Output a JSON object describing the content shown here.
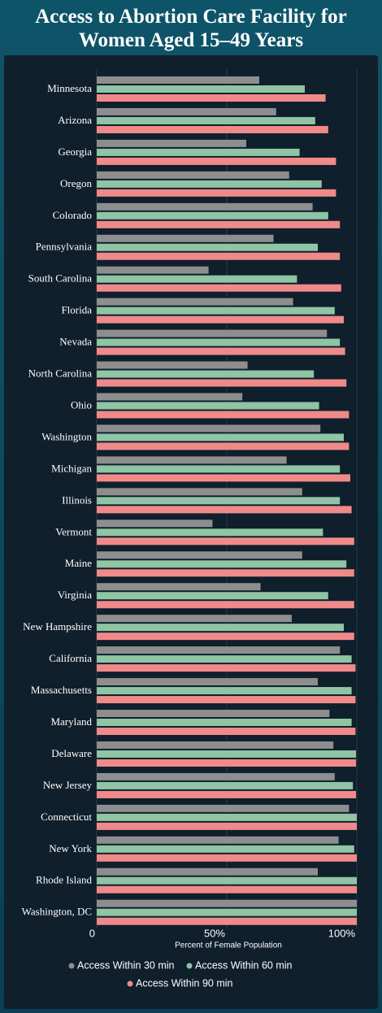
{
  "chart_data": {
    "type": "barh",
    "title": "Access to Abortion Care Facility for Women Aged 15–49 Years",
    "x_label": "Percent of Female Population",
    "categories": [
      "Minnesota",
      "Arizona",
      "Georgia",
      "Oregon",
      "Colorado",
      "Pennsylvania",
      "South Carolina",
      "Florida",
      "Nevada",
      "North Carolina",
      "Ohio",
      "Washington",
      "Michigan",
      "Illinois",
      "Vermont",
      "Maine",
      "Virginia",
      "New Hampshire",
      "California",
      "Massachusetts",
      "Maryland",
      "Delaware",
      "New Jersey",
      "Connecticut",
      "New York",
      "Rhode Island",
      "Washington, DC"
    ],
    "series": [
      {
        "name": "Access Within 30 min",
        "color": "#8e8e8e",
        "values": [
          62.5,
          69,
          57.5,
          74,
          83,
          68,
          43,
          75.5,
          88.5,
          58,
          56,
          86,
          73,
          79,
          44.5,
          79,
          63,
          75,
          93.5,
          85,
          89.5,
          91,
          91.5,
          97,
          93,
          85,
          100
        ]
      },
      {
        "name": "Access Within 60 min",
        "color": "#8fc4a5",
        "values": [
          80,
          84,
          78,
          86.5,
          89,
          85,
          77,
          91.5,
          93.5,
          83.5,
          85.5,
          95,
          93.5,
          93.5,
          87,
          96,
          89,
          95,
          98,
          98,
          98,
          99.7,
          98.5,
          100,
          99,
          100,
          100
        ]
      },
      {
        "name": "Access Within 90 min",
        "color": "#f08a8a",
        "values": [
          88,
          89,
          92,
          92,
          93.5,
          93.5,
          94,
          95,
          95.5,
          96,
          97,
          97,
          97.5,
          98,
          99,
          99,
          99,
          99,
          99.5,
          99.5,
          99.5,
          99.7,
          99.7,
          100,
          100,
          100,
          100
        ]
      }
    ],
    "xlim": [
      0,
      100
    ],
    "xticks": [
      0,
      {
        "value": 50,
        "label": "50%"
      },
      {
        "value": 100,
        "label": "100%"
      }
    ],
    "grid": true
  }
}
